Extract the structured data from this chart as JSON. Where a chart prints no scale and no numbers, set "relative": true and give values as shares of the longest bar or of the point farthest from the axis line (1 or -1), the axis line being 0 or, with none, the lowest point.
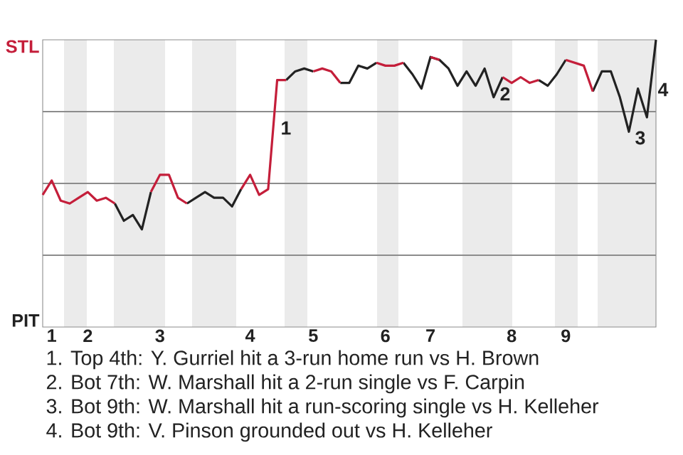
{
  "chart_data": {
    "type": "line",
    "relative": true,
    "categories": [
      null,
      "1",
      null,
      null,
      null,
      "2",
      null,
      null,
      null,
      null,
      null,
      null,
      null,
      "3",
      null,
      null,
      null,
      null,
      null,
      null,
      null,
      null,
      null,
      "4",
      null,
      null,
      null,
      null,
      null,
      null,
      "5",
      null,
      null,
      null,
      null,
      null,
      null,
      null,
      "6",
      null,
      null,
      null,
      null,
      "7",
      null,
      null,
      null,
      null,
      null,
      null,
      null,
      null,
      "8",
      null,
      null,
      null,
      null,
      null,
      "9",
      null,
      null,
      null,
      null,
      null,
      null,
      null,
      null,
      null,
      null
    ],
    "series": [
      {
        "color": "#222222",
        "values": [
          null,
          null,
          null,
          null,
          null,
          null,
          null,
          null,
          0.43,
          0.37,
          0.39,
          0.34,
          0.47,
          null,
          null,
          null,
          0.43,
          0.45,
          0.47,
          0.45,
          0.45,
          0.42,
          0.48,
          null,
          null,
          null,
          null,
          0.86,
          0.89,
          0.9,
          0.89,
          null,
          null,
          0.85,
          0.85,
          0.91,
          0.9,
          0.92,
          null,
          null,
          0.92,
          0.88,
          0.83,
          0.94,
          0.93,
          0.9,
          0.84,
          0.89,
          0.84,
          0.9,
          0.8,
          0.87,
          null,
          null,
          null,
          0.86,
          0.84,
          0.88,
          0.93,
          null,
          null,
          0.82,
          0.89,
          0.89,
          0.8,
          0.68,
          0.83,
          0.73,
          1
        ]
      },
      {
        "color": "#c41e3a",
        "values": [
          0.46,
          0.51,
          0.44,
          0.43,
          0.45,
          0.47,
          0.44,
          0.45,
          0.43,
          null,
          null,
          null,
          0.47,
          0.53,
          0.53,
          0.45,
          0.43,
          null,
          null,
          null,
          null,
          null,
          0.48,
          0.53,
          0.46,
          0.48,
          0.86,
          0.86,
          null,
          null,
          0.89,
          0.9,
          0.89,
          0.85,
          null,
          null,
          null,
          0.92,
          0.91,
          0.91,
          0.92,
          null,
          null,
          0.94,
          0.93,
          null,
          null,
          null,
          null,
          null,
          null,
          0.87,
          0.85,
          0.87,
          0.85,
          0.86,
          null,
          null,
          0.93,
          0.92,
          0.91,
          0.82,
          null,
          null,
          null,
          null,
          null,
          null,
          null
        ]
      }
    ],
    "grid": "y",
    "annotations": [
      "STL",
      "PIT",
      "1",
      "2",
      "3",
      "4",
      "1. Top 4th: Y. Gurriel hit a 3-run home run vs H. Brown",
      "2. Bot 7th: W. Marshall hit a 2-run single vs F. Carpin",
      "3. Bot 9th: W. Marshall hit a run-scoring single vs H. Kelleher",
      "4. Bot 9th: V. Pinson grounded out vs H. Kelleher"
    ]
  }
}
